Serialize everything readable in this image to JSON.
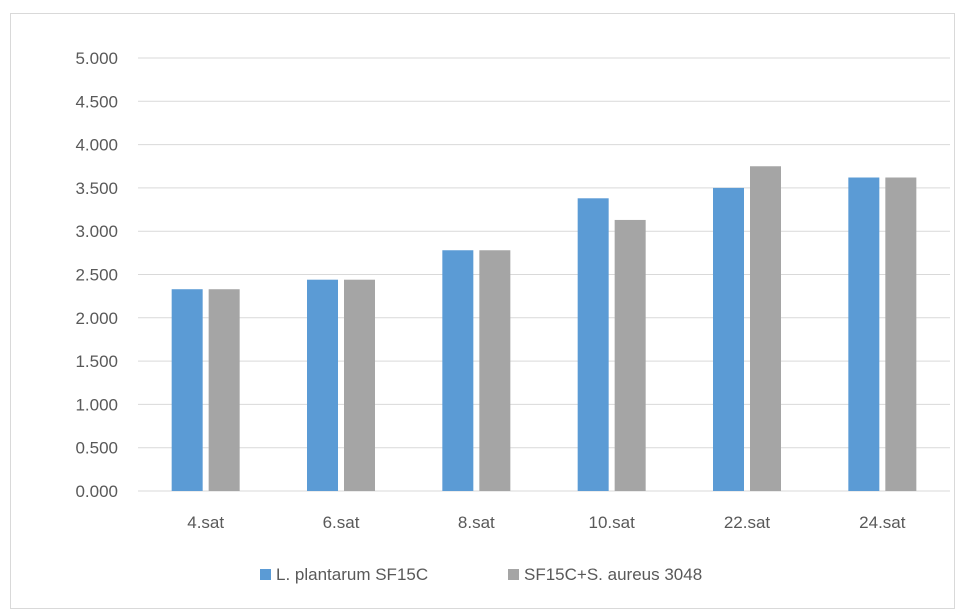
{
  "chart_data": {
    "type": "bar",
    "categories": [
      "4.sat",
      "6.sat",
      "8.sat",
      "10.sat",
      "22.sat",
      "24.sat"
    ],
    "series": [
      {
        "name": "L. plantarum SF15C",
        "color": "#5b9bd5",
        "values": [
          2.33,
          2.44,
          2.78,
          3.38,
          3.5,
          3.62
        ]
      },
      {
        "name": "SF15C+S. aureus 3048",
        "color": "#a5a5a5",
        "values": [
          2.33,
          2.44,
          2.78,
          3.13,
          3.75,
          3.62
        ]
      }
    ],
    "ylim": [
      0,
      5
    ],
    "yticks": [
      "0.000",
      "0.500",
      "1.000",
      "1.500",
      "2.000",
      "2.500",
      "3.000",
      "3.500",
      "4.000",
      "4.500",
      "5.000"
    ],
    "grid": true,
    "legend": "bottom",
    "title": "",
    "xlabel": "",
    "ylabel": ""
  }
}
